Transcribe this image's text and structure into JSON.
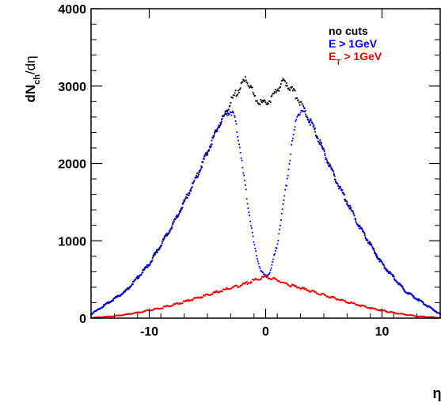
{
  "chart_data": {
    "type": "scatter",
    "ylabel": {
      "main": "dN",
      "sub": "ch",
      "tail": "/dη"
    },
    "xlabel": "η",
    "xlim": [
      -15,
      15
    ],
    "ylim": [
      0,
      4000
    ],
    "x_ticks": [
      -10,
      0,
      10
    ],
    "y_ticks": [
      0,
      1000,
      2000,
      3000,
      4000
    ],
    "grid": false,
    "legend_position": "top-right",
    "legend": [
      {
        "name": "no cuts",
        "base": "no cuts",
        "sub": "",
        "tail": "",
        "color": "#000000"
      },
      {
        "name": "E > 1GeV",
        "base": "E > 1GeV",
        "sub": "",
        "tail": "",
        "color": "#0000ee"
      },
      {
        "name": "E_T > 1GeV",
        "base": "E",
        "sub": "T",
        "tail": " > 1GeV",
        "color": "#ee0000"
      }
    ],
    "series": [
      {
        "name": "no cuts",
        "color": "#000000",
        "x": [
          -15,
          -12,
          -10,
          -8,
          -6,
          -5,
          -4,
          -3.5,
          -3,
          -2.5,
          -2,
          -1.7,
          -1.5,
          -1.2,
          -1,
          -0.7,
          -0.5,
          -0.2,
          0,
          0.2,
          0.5,
          0.7,
          1,
          1.2,
          1.5,
          1.7,
          2,
          2.5,
          3,
          3.5,
          4,
          5,
          6,
          8,
          10,
          12,
          15
        ],
        "y": [
          50,
          350,
          700,
          1200,
          1800,
          2150,
          2500,
          2630,
          2800,
          2920,
          3020,
          3080,
          3050,
          2960,
          2880,
          2820,
          2790,
          2780,
          2790,
          2800,
          2840,
          2880,
          2950,
          3000,
          3050,
          3060,
          3000,
          2900,
          2780,
          2630,
          2500,
          2150,
          1800,
          1200,
          700,
          350,
          50
        ]
      },
      {
        "name": "E > 1GeV",
        "color": "#0000ee",
        "x": [
          -15,
          -12,
          -10,
          -8,
          -6,
          -5,
          -4,
          -3.5,
          -3,
          -2.7,
          -2.5,
          -2.2,
          -2,
          -1.7,
          -1.5,
          -1.2,
          -1,
          -0.7,
          -0.5,
          -0.3,
          0,
          0.3,
          0.5,
          0.7,
          1,
          1.2,
          1.5,
          1.7,
          2,
          2.2,
          2.5,
          2.7,
          3,
          3.5,
          4,
          5,
          6,
          8,
          10,
          12,
          15
        ],
        "y": [
          50,
          350,
          700,
          1200,
          1800,
          2150,
          2500,
          2630,
          2680,
          2620,
          2450,
          2200,
          1950,
          1650,
          1450,
          1150,
          950,
          780,
          660,
          580,
          540,
          580,
          660,
          780,
          950,
          1150,
          1450,
          1650,
          1950,
          2200,
          2450,
          2620,
          2680,
          2630,
          2500,
          2150,
          1800,
          1200,
          700,
          350,
          50
        ]
      },
      {
        "name": "E_T > 1GeV",
        "color": "#ee0000",
        "x": [
          -15,
          -13,
          -11,
          -9,
          -7,
          -5,
          -3,
          -2,
          -1,
          0,
          1,
          2,
          3,
          5,
          7,
          9,
          11,
          13,
          15
        ],
        "y": [
          5,
          25,
          70,
          130,
          210,
          300,
          390,
          430,
          490,
          540,
          490,
          430,
          390,
          300,
          210,
          130,
          70,
          25,
          5
        ]
      }
    ]
  }
}
